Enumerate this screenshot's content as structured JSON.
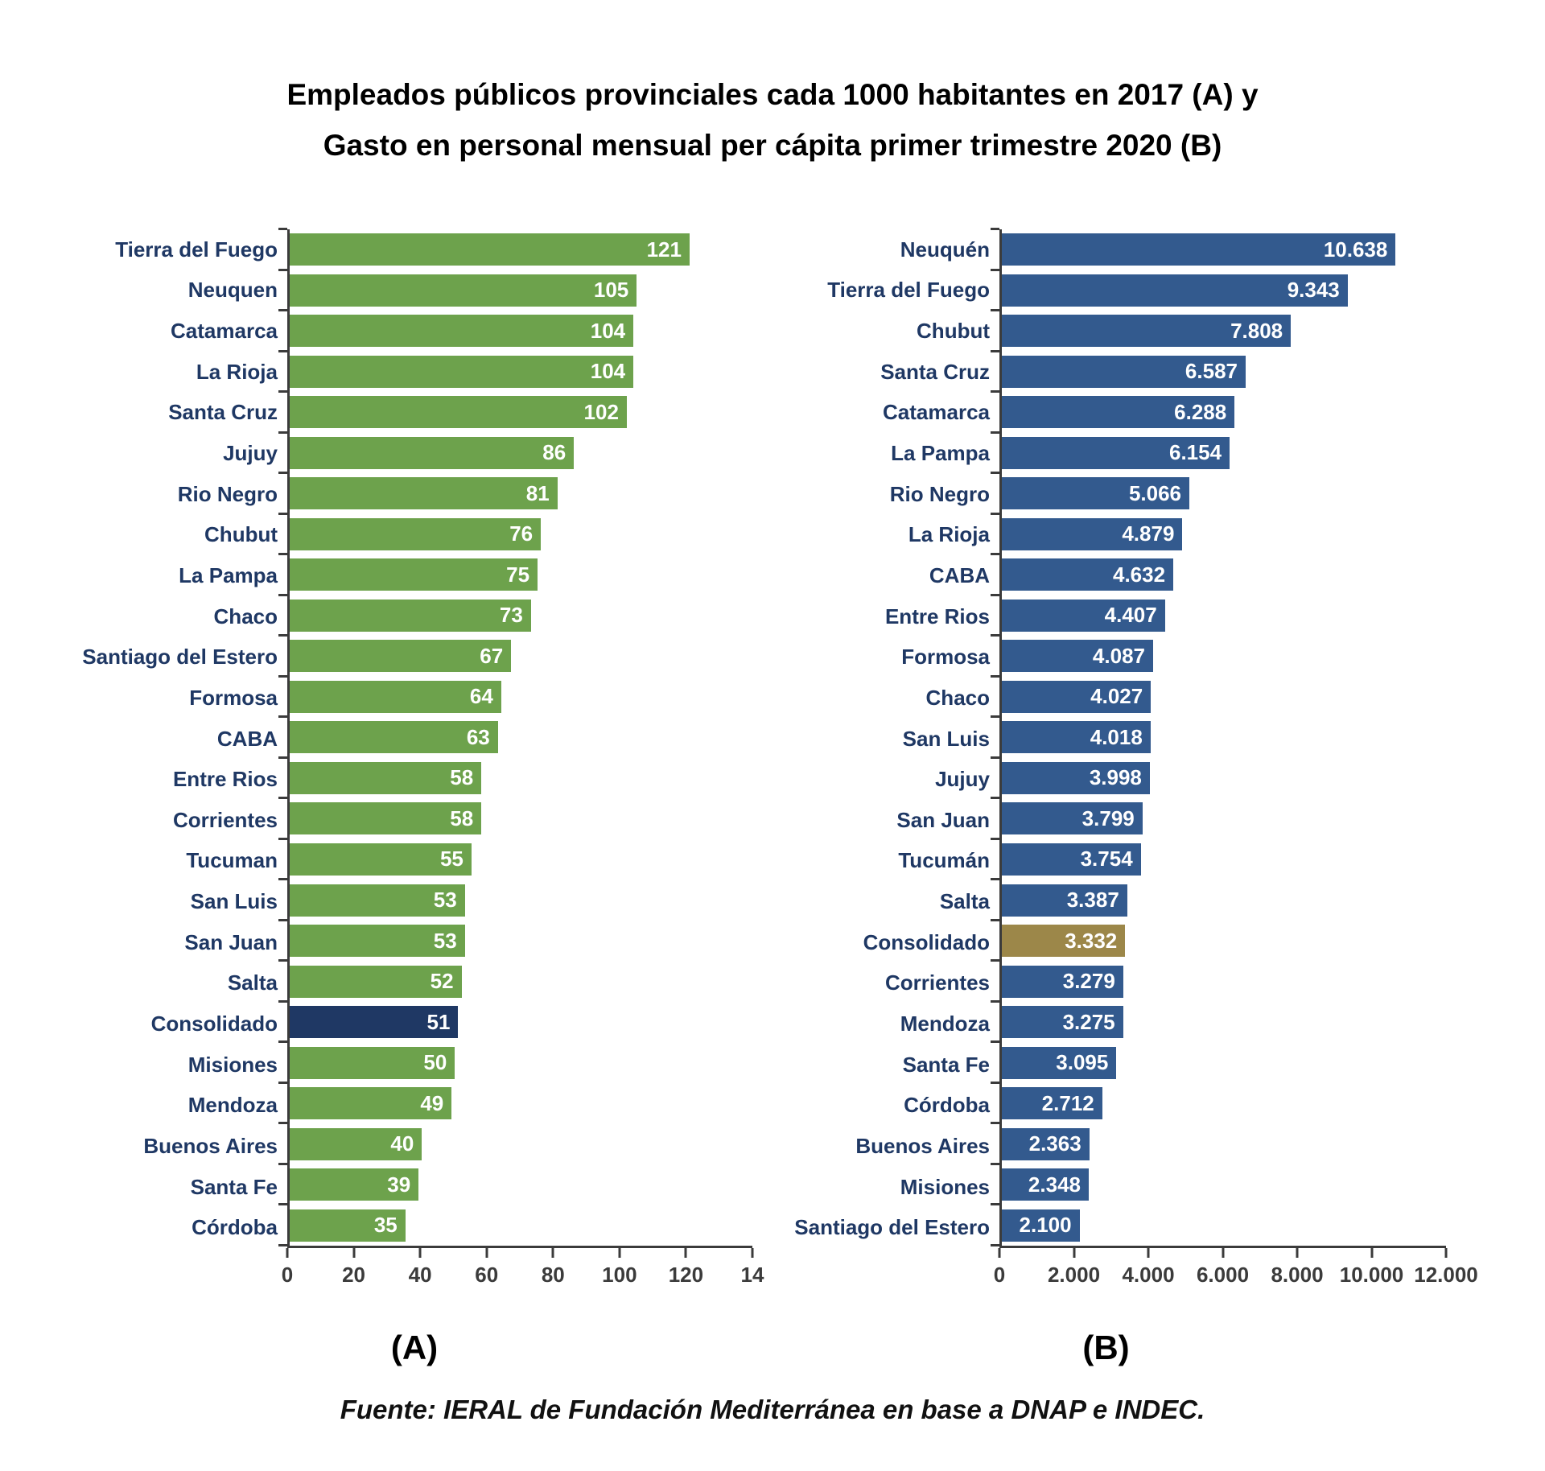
{
  "title": {
    "line1": "Empleados públicos provinciales cada 1000 habitantes en 2017 (A) y",
    "line2": "Gasto en personal mensual per cápita primer trimestre 2020 (B)"
  },
  "footer": {
    "text": "Fuente: IERAL de Fundación Mediterránea en base a DNAP e INDEC."
  },
  "chart_data": [
    {
      "type": "bar",
      "orientation": "horizontal",
      "caption": "(A)",
      "title": "Empleados públicos provinciales cada 1000 habitantes en 2017",
      "xlabel": "",
      "ylabel": "",
      "xlim": [
        0,
        140
      ],
      "x_ticks": [
        "0",
        "20",
        "40",
        "60",
        "80",
        "100",
        "120",
        "14"
      ],
      "grid": false,
      "legend": "none",
      "bar_color": "#6DA24C",
      "highlight_index": 19,
      "highlight_color": "#1F3864",
      "categories": [
        "Tierra del Fuego",
        "Neuquen",
        "Catamarca",
        "La Rioja",
        "Santa Cruz",
        "Jujuy",
        "Rio Negro",
        "Chubut",
        "La Pampa",
        "Chaco",
        "Santiago del Estero",
        "Formosa",
        "CABA",
        "Entre Rios",
        "Corrientes",
        "Tucuman",
        "San Luis",
        "San Juan",
        "Salta",
        "Consolidado",
        "Misiones",
        "Mendoza",
        "Buenos Aires",
        "Santa Fe",
        "Córdoba"
      ],
      "values": [
        121,
        105,
        104,
        104,
        102,
        86,
        81,
        76,
        75,
        73,
        67,
        64,
        63,
        58,
        58,
        55,
        53,
        53,
        52,
        51,
        50,
        49,
        40,
        39,
        35
      ],
      "value_labels": [
        "121",
        "105",
        "104",
        "104",
        "102",
        "86",
        "81",
        "76",
        "75",
        "73",
        "67",
        "64",
        "63",
        "58",
        "58",
        "55",
        "53",
        "53",
        "52",
        "51",
        "50",
        "49",
        "40",
        "39",
        "35"
      ]
    },
    {
      "type": "bar",
      "orientation": "horizontal",
      "caption": "(B)",
      "title": "Gasto en personal mensual per cápita primer trimestre 2020",
      "xlabel": "",
      "ylabel": "",
      "xlim": [
        0,
        12000
      ],
      "x_ticks": [
        "0",
        "2.000",
        "4.000",
        "6.000",
        "8.000",
        "10.000",
        "12.000"
      ],
      "grid": false,
      "legend": "none",
      "bar_color": "#335A8E",
      "highlight_index": 17,
      "highlight_color": "#9C8749",
      "categories": [
        "Neuquén",
        "Tierra del Fuego",
        "Chubut",
        "Santa Cruz",
        "Catamarca",
        "La Pampa",
        "Rio Negro",
        "La Rioja",
        "CABA",
        "Entre Rios",
        "Formosa",
        "Chaco",
        "San Luis",
        "Jujuy",
        "San Juan",
        "Tucumán",
        "Salta",
        "Consolidado",
        "Corrientes",
        "Mendoza",
        "Santa Fe",
        "Córdoba",
        "Buenos Aires",
        "Misiones",
        "Santiago del Estero"
      ],
      "values": [
        10638,
        9343,
        7808,
        6587,
        6288,
        6154,
        5066,
        4879,
        4632,
        4407,
        4087,
        4027,
        4018,
        3998,
        3799,
        3754,
        3387,
        3332,
        3279,
        3275,
        3095,
        2712,
        2363,
        2348,
        2100
      ],
      "value_labels": [
        "10.638",
        "9.343",
        "7.808",
        "6.587",
        "6.288",
        "6.154",
        "5.066",
        "4.879",
        "4.632",
        "4.407",
        "4.087",
        "4.027",
        "4.018",
        "3.998",
        "3.799",
        "3.754",
        "3.387",
        "3.332",
        "3.279",
        "3.275",
        "3.095",
        "2.712",
        "2.363",
        "2.348",
        "2.100"
      ]
    }
  ]
}
